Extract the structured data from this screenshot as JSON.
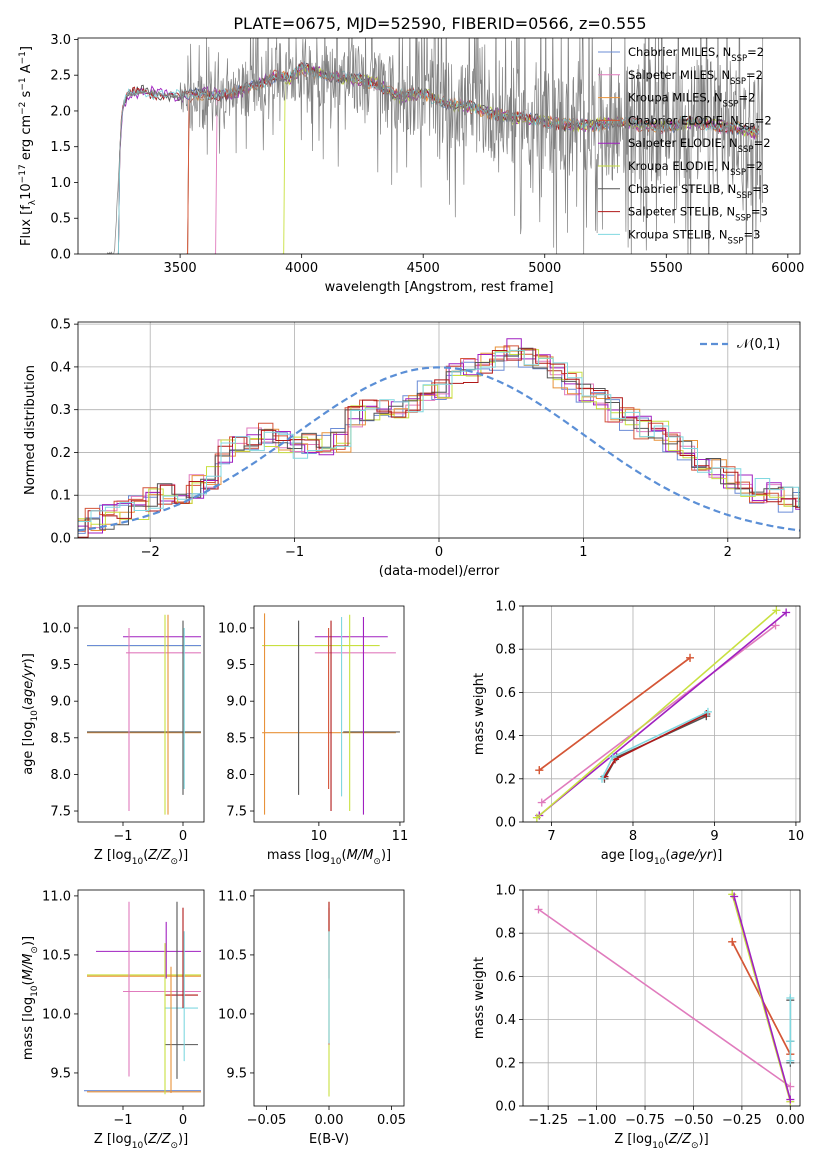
{
  "figure": {
    "title": "PLATE=0675, MJD=52590, FIBERID=0566, z=0.555"
  },
  "colors": {
    "Chabrier MILES": "#6b8cd6",
    "Salpeter MILES": "#e07bbd",
    "Kroupa MILES": "#e8923a",
    "Chabrier ELODIE": "#d4553a",
    "Salpeter ELODIE": "#a020c0",
    "Kroupa ELODIE": "#c8e040",
    "Chabrier STELIB": "#555555",
    "Salpeter STELIB": "#b01818",
    "Kroupa STELIB": "#80d8e0"
  },
  "chart_data": [
    {
      "id": "spectrum",
      "type": "line",
      "title": "PLATE=0675, MJD=52590, FIBERID=0566, z=0.555",
      "xlabel": "wavelength [Angstrom, rest frame]",
      "ylabel": "Flux [f_λ 10^-17 erg cm^-2 s^-1 A^-1]",
      "xlim": [
        3080,
        6050
      ],
      "ylim": [
        0,
        3.02
      ],
      "xticks": [
        3500,
        4000,
        4500,
        5000,
        5500,
        6000
      ],
      "yticks": [
        0.0,
        0.5,
        1.0,
        1.5,
        2.0,
        2.5,
        3.0
      ],
      "grid": false,
      "legend_position": "top-right",
      "legend": [
        "Chabrier MILES, N_SSP=2",
        "Salpeter MILES, N_SSP=2",
        "Kroupa MILES, N_SSP=2",
        "Chabrier ELODIE, N_SSP=2",
        "Salpeter ELODIE, N_SSP=2",
        "Kroupa ELODIE, N_SSP=2",
        "Chabrier STELIB, N_SSP=3",
        "Salpeter STELIB, N_SSP=3",
        "Kroupa STELIB, N_SSP=3"
      ],
      "data_color": "#808080",
      "continuum_knots": [
        [
          3230,
          0.0
        ],
        [
          3260,
          1.95
        ],
        [
          3280,
          2.22
        ],
        [
          3350,
          2.27
        ],
        [
          3450,
          2.22
        ],
        [
          3500,
          2.2
        ],
        [
          3600,
          2.25
        ],
        [
          3700,
          2.22
        ],
        [
          3800,
          2.35
        ],
        [
          3900,
          2.5
        ],
        [
          3950,
          2.45
        ],
        [
          4000,
          2.6
        ],
        [
          4100,
          2.5
        ],
        [
          4200,
          2.45
        ],
        [
          4300,
          2.4
        ],
        [
          4400,
          2.2
        ],
        [
          4500,
          2.25
        ],
        [
          4600,
          2.1
        ],
        [
          4700,
          2.05
        ],
        [
          4800,
          1.95
        ],
        [
          4900,
          1.9
        ],
        [
          5000,
          1.85
        ],
        [
          5100,
          1.8
        ],
        [
          5200,
          1.8
        ],
        [
          5300,
          1.85
        ],
        [
          5400,
          1.8
        ],
        [
          5500,
          1.78
        ],
        [
          5600,
          1.85
        ],
        [
          5700,
          1.8
        ],
        [
          5800,
          1.75
        ],
        [
          5870,
          1.7
        ]
      ],
      "data_noise_start": 3500,
      "data_noise_end": 5900
    },
    {
      "id": "residuals",
      "type": "bar",
      "xlabel": "(data-model)/error",
      "ylabel": "Normed distribution",
      "xlim": [
        -2.5,
        2.5
      ],
      "ylim": [
        0,
        0.505
      ],
      "xticks": [
        -2,
        -1,
        0,
        1,
        2
      ],
      "yticks": [
        0.0,
        0.1,
        0.2,
        0.3,
        0.4,
        0.5
      ],
      "grid": true,
      "bin_width": 0.1,
      "base_hist": [
        0.03,
        0.04,
        0.05,
        0.06,
        0.07,
        0.09,
        0.1,
        0.11,
        0.12,
        0.14,
        0.2,
        0.22,
        0.23,
        0.24,
        0.22,
        0.21,
        0.22,
        0.22,
        0.23,
        0.28,
        0.3,
        0.31,
        0.3,
        0.32,
        0.34,
        0.35,
        0.38,
        0.39,
        0.41,
        0.42,
        0.44,
        0.42,
        0.4,
        0.38,
        0.36,
        0.34,
        0.32,
        0.3,
        0.28,
        0.26,
        0.25,
        0.23,
        0.2,
        0.18,
        0.16,
        0.14,
        0.12,
        0.11,
        0.1,
        0.09,
        0.08,
        0.07,
        0.06,
        0.05,
        0.05
      ],
      "legend": [
        "𝒩(0,1)"
      ],
      "legend_position": "top-right",
      "gaussian": {
        "mean": 0,
        "sigma": 1,
        "color": "#5b8fd6"
      }
    },
    {
      "id": "age-vs-Z",
      "type": "scatter",
      "xlabel": "Z [log10(Z/Z⊙)]",
      "ylabel": "age  [log10(age/yr)]",
      "xlim": [
        -1.75,
        0.35
      ],
      "ylim": [
        7.35,
        10.3
      ],
      "xticks": [
        -1,
        0
      ],
      "yticks": [
        7.5,
        8.0,
        8.5,
        9.0,
        9.5,
        10.0
      ],
      "grid": false,
      "horizontal_segments": [
        {
          "model": "Salpeter ELODIE",
          "y": 9.88,
          "x": [
            -1.0,
            0.3
          ]
        },
        {
          "model": "Kroupa ELODIE",
          "y": 9.76,
          "x": [
            -1.6,
            0.3
          ]
        },
        {
          "model": "Chabrier MILES",
          "y": 9.76,
          "x": [
            -1.6,
            0.3
          ]
        },
        {
          "model": "Salpeter MILES",
          "y": 9.66,
          "x": [
            -0.95,
            0.3
          ]
        },
        {
          "model": "Kroupa MILES",
          "y": 8.57,
          "x": [
            -1.6,
            0.3
          ]
        },
        {
          "model": "Chabrier STELIB",
          "y": 8.58,
          "x": [
            -1.6,
            0.3
          ]
        }
      ],
      "vertical_segments": [
        {
          "model": "Salpeter MILES",
          "x": -0.9,
          "y": [
            7.5,
            10.0
          ]
        },
        {
          "model": "Kroupa ELODIE",
          "x": -0.3,
          "y": [
            7.45,
            10.18
          ]
        },
        {
          "model": "Kroupa MILES",
          "x": -0.25,
          "y": [
            7.45,
            10.18
          ]
        },
        {
          "model": "Chabrier STELIB",
          "x": 0.0,
          "y": [
            7.72,
            10.1
          ]
        },
        {
          "model": "Kroupa STELIB",
          "x": 0.02,
          "y": [
            7.8,
            10.0
          ]
        }
      ]
    },
    {
      "id": "age-vs-mass",
      "type": "scatter",
      "xlabel": "mass [log10(M/M⊙)]",
      "ylabel": "",
      "xlim": [
        9.2,
        11.05
      ],
      "ylim": [
        7.35,
        10.3
      ],
      "xticks": [
        10,
        11
      ],
      "yticks": [
        7.5,
        8.0,
        8.5,
        9.0,
        9.5,
        10.0
      ],
      "grid": false,
      "horizontal_segments": [
        {
          "model": "Salpeter ELODIE",
          "y": 9.88,
          "x": [
            9.95,
            10.85
          ]
        },
        {
          "model": "Kroupa ELODIE",
          "y": 9.76,
          "x": [
            9.3,
            10.75
          ]
        },
        {
          "model": "Salpeter MILES",
          "y": 9.66,
          "x": [
            9.95,
            10.95
          ]
        },
        {
          "model": "Kroupa MILES",
          "y": 8.57,
          "x": [
            9.3,
            10.95
          ]
        },
        {
          "model": "Chabrier STELIB",
          "y": 8.58,
          "x": [
            10.3,
            11.0
          ]
        }
      ],
      "vertical_segments": [
        {
          "model": "Kroupa MILES",
          "x": 9.33,
          "y": [
            7.45,
            10.2
          ]
        },
        {
          "model": "Chabrier STELIB",
          "x": 9.75,
          "y": [
            7.72,
            10.1
          ]
        },
        {
          "model": "Chabrier ELODIE",
          "x": 10.12,
          "y": [
            7.8,
            10.0
          ]
        },
        {
          "model": "Salpeter STELIB",
          "x": 10.15,
          "y": [
            7.5,
            10.1
          ]
        },
        {
          "model": "Kroupa STELIB",
          "x": 10.28,
          "y": [
            7.7,
            10.15
          ]
        },
        {
          "model": "Kroupa ELODIE",
          "x": 10.38,
          "y": [
            7.5,
            10.18
          ]
        },
        {
          "model": "Salpeter ELODIE",
          "x": 10.55,
          "y": [
            7.45,
            10.15
          ]
        }
      ]
    },
    {
      "id": "weight-vs-age",
      "type": "line",
      "xlabel": "age  [log10(age/yr)]",
      "ylabel": "mass weight",
      "xlim": [
        6.65,
        10.05
      ],
      "ylim": [
        0,
        1.0
      ],
      "xticks": [
        7,
        8,
        9,
        10
      ],
      "yticks": [
        0.0,
        0.2,
        0.4,
        0.6,
        0.8,
        1.0
      ],
      "grid": true,
      "series": [
        {
          "model": "Kroupa MILES",
          "x": [
            6.85,
            8.7
          ],
          "y": [
            0.24,
            0.76
          ]
        },
        {
          "model": "Chabrier ELODIE",
          "x": [
            6.85,
            8.7
          ],
          "y": [
            0.24,
            0.76
          ]
        },
        {
          "model": "Salpeter MILES",
          "x": [
            6.88,
            9.75
          ],
          "y": [
            0.09,
            0.91
          ]
        },
        {
          "model": "Salpeter ELODIE",
          "x": [
            6.85,
            9.88
          ],
          "y": [
            0.03,
            0.97
          ]
        },
        {
          "model": "Kroupa ELODIE",
          "x": [
            6.82,
            9.76
          ],
          "y": [
            0.02,
            0.98
          ]
        },
        {
          "model": "Chabrier STELIB",
          "x": [
            7.65,
            7.8,
            8.9
          ],
          "y": [
            0.2,
            0.3,
            0.49
          ]
        },
        {
          "model": "Salpeter STELIB",
          "x": [
            7.65,
            7.78,
            8.9
          ],
          "y": [
            0.21,
            0.29,
            0.5
          ]
        },
        {
          "model": "Kroupa STELIB",
          "x": [
            7.62,
            7.75,
            8.92
          ],
          "y": [
            0.2,
            0.3,
            0.51
          ]
        }
      ]
    },
    {
      "id": "mass-vs-Z",
      "type": "scatter",
      "xlabel": "Z [log10(Z/Z⊙)]",
      "ylabel": "mass [log10(M/M⊙)]",
      "xlim": [
        -1.75,
        0.35
      ],
      "ylim": [
        9.22,
        11.05
      ],
      "xticks": [
        -1,
        0
      ],
      "yticks": [
        9.5,
        10.0,
        10.5,
        11.0
      ],
      "grid": false,
      "horizontal_segments": [
        {
          "model": "Salpeter ELODIE",
          "y": 10.53,
          "x": [
            -1.45,
            0.3
          ]
        },
        {
          "model": "Kroupa ELODIE",
          "y": 10.33,
          "x": [
            -1.6,
            0.3
          ]
        },
        {
          "model": "Kroupa MILES",
          "y": 10.32,
          "x": [
            -1.6,
            0.3
          ]
        },
        {
          "model": "Salpeter MILES",
          "y": 10.19,
          "x": [
            -1.0,
            0.3
          ]
        },
        {
          "model": "Salpeter STELIB",
          "y": 10.16,
          "x": [
            -0.3,
            0.25
          ]
        },
        {
          "model": "Kroupa STELIB",
          "y": 10.05,
          "x": [
            -0.3,
            0.25
          ]
        },
        {
          "model": "Chabrier STELIB",
          "y": 9.74,
          "x": [
            -0.3,
            0.25
          ]
        },
        {
          "model": "Chabrier MILES",
          "y": 9.35,
          "x": [
            -1.65,
            0.3
          ]
        },
        {
          "model": "Kroupa MILES",
          "y": 9.34,
          "x": [
            -1.6,
            0.3
          ]
        }
      ],
      "vertical_segments": [
        {
          "model": "Salpeter MILES",
          "x": -0.9,
          "y": [
            9.47,
            10.95
          ]
        },
        {
          "model": "Kroupa ELODIE",
          "x": -0.3,
          "y": [
            9.32,
            10.6
          ]
        },
        {
          "model": "Salpeter ELODIE",
          "x": -0.28,
          "y": [
            10.3,
            10.78
          ]
        },
        {
          "model": "Kroupa MILES",
          "x": -0.2,
          "y": [
            9.33,
            10.4
          ]
        },
        {
          "model": "Chabrier STELIB",
          "x": -0.1,
          "y": [
            9.45,
            10.95
          ]
        },
        {
          "model": "Salpeter STELIB",
          "x": 0.0,
          "y": [
            10.05,
            10.9
          ]
        },
        {
          "model": "Kroupa STELIB",
          "x": 0.02,
          "y": [
            9.6,
            10.7
          ]
        }
      ]
    },
    {
      "id": "mass-vs-ebv",
      "type": "scatter",
      "xlabel": "E(B-V)",
      "ylabel": "",
      "xlim": [
        -0.06,
        0.06
      ],
      "ylim": [
        9.22,
        11.05
      ],
      "xticks": [
        -0.05,
        0.0,
        0.05
      ],
      "yticks": [
        9.5,
        10.0,
        10.5,
        11.0
      ],
      "grid": false,
      "vertical_segments": [
        {
          "model": "Kroupa ELODIE",
          "x": 0.0,
          "y": [
            9.3,
            10.95
          ]
        },
        {
          "model": "Chabrier ELODIE",
          "x": 0.0,
          "y": [
            9.74,
            10.9
          ]
        },
        {
          "model": "Salpeter STELIB",
          "x": 0.0,
          "y": [
            10.3,
            10.95
          ]
        },
        {
          "model": "Kroupa STELIB",
          "x": 0.0,
          "y": [
            9.75,
            10.7
          ]
        }
      ]
    },
    {
      "id": "weight-vs-Z",
      "type": "line",
      "xlabel": "Z [log10(Z/Z⊙)]",
      "ylabel": "mass weight",
      "xlim": [
        -1.38,
        0.05
      ],
      "ylim": [
        0,
        1.0
      ],
      "xticks": [
        -1.25,
        -1.0,
        -0.75,
        -0.5,
        -0.25,
        0.0
      ],
      "yticks": [
        0.0,
        0.2,
        0.4,
        0.6,
        0.8,
        1.0
      ],
      "grid": true,
      "series": [
        {
          "model": "Salpeter MILES",
          "x": [
            -1.3,
            0.0
          ],
          "y": [
            0.91,
            0.09
          ]
        },
        {
          "model": "Kroupa MILES",
          "x": [
            -0.3,
            0.0
          ],
          "y": [
            0.76,
            0.24
          ]
        },
        {
          "model": "Chabrier ELODIE",
          "x": [
            -0.3,
            0.0
          ],
          "y": [
            0.76,
            0.24
          ]
        },
        {
          "model": "Kroupa ELODIE",
          "x": [
            -0.3,
            0.0
          ],
          "y": [
            0.98,
            0.02
          ]
        },
        {
          "model": "Salpeter ELODIE",
          "x": [
            -0.29,
            0.0
          ],
          "y": [
            0.97,
            0.03
          ]
        },
        {
          "model": "Chabrier STELIB",
          "x": [
            0.0,
            0.0,
            0.0
          ],
          "y": [
            0.2,
            0.3,
            0.49
          ]
        },
        {
          "model": "Kroupa STELIB",
          "x": [
            0.0,
            0.0,
            0.0
          ],
          "y": [
            0.21,
            0.3,
            0.5
          ]
        }
      ]
    }
  ]
}
